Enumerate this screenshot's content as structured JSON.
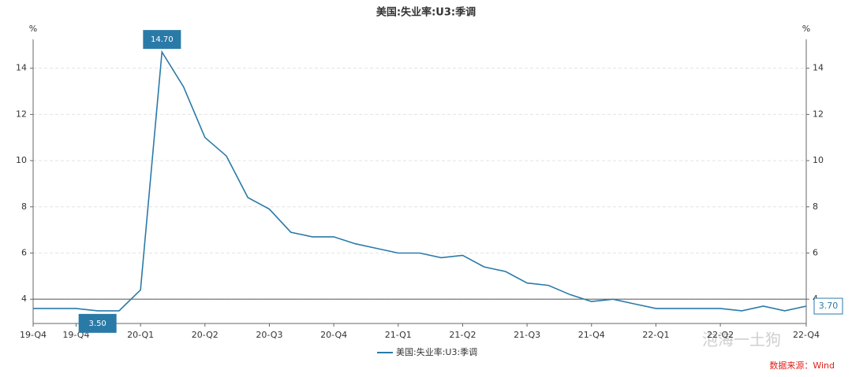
{
  "chart_data": {
    "type": "line",
    "title": "美国:失业率:U3:季调",
    "y_unit": "%",
    "categories": [
      "19-Q4",
      null,
      "19-Q4",
      null,
      null,
      "20-Q1",
      null,
      null,
      "20-Q2",
      null,
      null,
      "20-Q3",
      null,
      null,
      "20-Q4",
      null,
      null,
      "21-Q1",
      null,
      null,
      "21-Q2",
      null,
      null,
      "21-Q3",
      null,
      null,
      "21-Q4",
      null,
      null,
      "22-Q1",
      null,
      null,
      "22-Q2",
      null,
      null,
      null,
      "22-Q4"
    ],
    "series": [
      {
        "name": "美国:失业率:U3:季调",
        "color": "#2a7aa8",
        "values": [
          3.6,
          3.6,
          3.6,
          3.5,
          3.5,
          4.4,
          14.7,
          13.2,
          11.0,
          10.2,
          8.4,
          7.9,
          6.9,
          6.7,
          6.7,
          6.4,
          6.2,
          6.0,
          6.0,
          5.8,
          5.9,
          5.4,
          5.2,
          4.7,
          4.6,
          4.2,
          3.9,
          4.0,
          3.8,
          3.6,
          3.6,
          3.6,
          3.6,
          3.5,
          3.7,
          3.5,
          3.7
        ],
        "value_labels": [
          null,
          null,
          null,
          "3.50",
          null,
          null,
          "14.70",
          null,
          null,
          null,
          null,
          null,
          null,
          null,
          null,
          null,
          null,
          null,
          null,
          null,
          null,
          null,
          null,
          null,
          null,
          null,
          null,
          null,
          null,
          null,
          null,
          null,
          null,
          null,
          null,
          null,
          "3.70"
        ]
      }
    ],
    "reference_line": 4,
    "ylim": [
      2.95,
      15.25
    ],
    "yticks": [
      4,
      6,
      8,
      10,
      12,
      14
    ],
    "grid": true,
    "legend": "bottom",
    "source": "数据来源：Wind",
    "watermark": "泡海一土狗"
  }
}
